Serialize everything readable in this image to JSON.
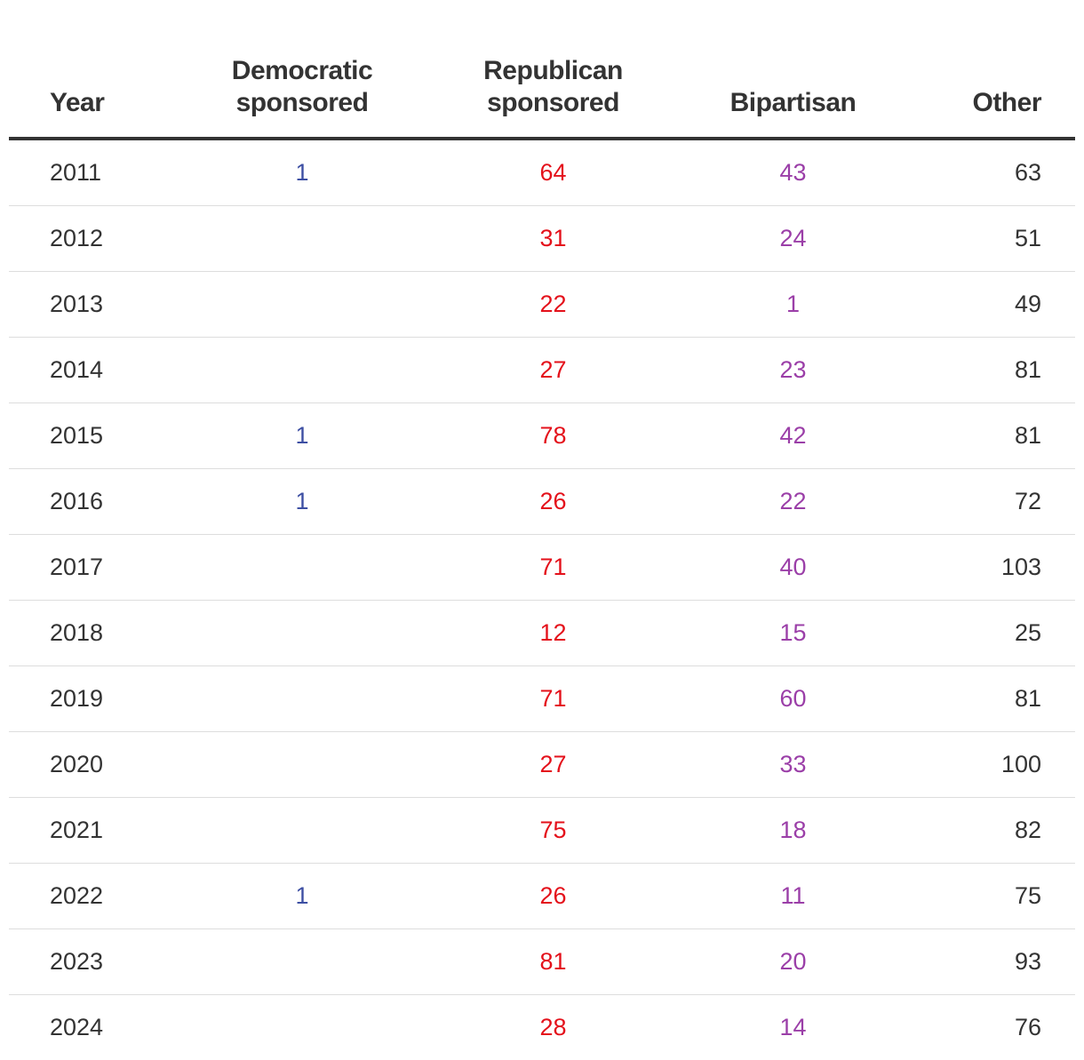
{
  "chart_data": {
    "type": "table",
    "columns": [
      "Year",
      "Democratic sponsored",
      "Republican sponsored",
      "Bipartisan",
      "Other"
    ],
    "header_lines": [
      [
        "Year"
      ],
      [
        "Democratic",
        "sponsored"
      ],
      [
        "Republican",
        "sponsored"
      ],
      [
        "Bipartisan"
      ],
      [
        "Other"
      ]
    ],
    "column_colors": [
      "#333333",
      "#3d4fa3",
      "#e4111b",
      "#9b3fa8",
      "#333333"
    ],
    "rows": [
      {
        "year": "2011",
        "dem": "1",
        "rep": "64",
        "bip": "43",
        "other": "63"
      },
      {
        "year": "2012",
        "dem": "",
        "rep": "31",
        "bip": "24",
        "other": "51"
      },
      {
        "year": "2013",
        "dem": "",
        "rep": "22",
        "bip": "1",
        "other": "49"
      },
      {
        "year": "2014",
        "dem": "",
        "rep": "27",
        "bip": "23",
        "other": "81"
      },
      {
        "year": "2015",
        "dem": "1",
        "rep": "78",
        "bip": "42",
        "other": "81"
      },
      {
        "year": "2016",
        "dem": "1",
        "rep": "26",
        "bip": "22",
        "other": "72"
      },
      {
        "year": "2017",
        "dem": "",
        "rep": "71",
        "bip": "40",
        "other": "103"
      },
      {
        "year": "2018",
        "dem": "",
        "rep": "12",
        "bip": "15",
        "other": "25"
      },
      {
        "year": "2019",
        "dem": "",
        "rep": "71",
        "bip": "60",
        "other": "81"
      },
      {
        "year": "2020",
        "dem": "",
        "rep": "27",
        "bip": "33",
        "other": "100"
      },
      {
        "year": "2021",
        "dem": "",
        "rep": "75",
        "bip": "18",
        "other": "82"
      },
      {
        "year": "2022",
        "dem": "1",
        "rep": "26",
        "bip": "11",
        "other": "75"
      },
      {
        "year": "2023",
        "dem": "",
        "rep": "81",
        "bip": "20",
        "other": "93"
      },
      {
        "year": "2024",
        "dem": "",
        "rep": "28",
        "bip": "14",
        "other": "76"
      }
    ]
  }
}
